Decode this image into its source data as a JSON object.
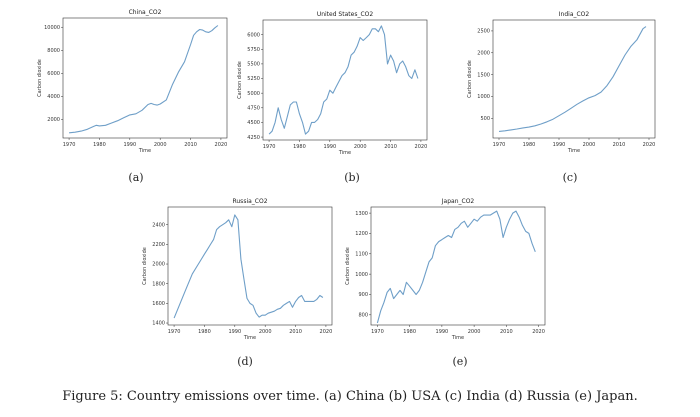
{
  "figure": {
    "caption": "Figure 5: Country emissions over time. (a) China (b) USA (c) India (d) Russia (e) Japan."
  },
  "chart_data": [
    {
      "type": "line",
      "sublabel": "(a)",
      "title": "China_CO2",
      "xlabel": "Time",
      "ylabel": "Carbon dioxide",
      "xlim": [
        1968,
        2022
      ],
      "ylim": [
        400,
        10800
      ],
      "xticks": [
        1970,
        1980,
        1990,
        2000,
        2010,
        2020
      ],
      "yticks": [
        2000,
        4000,
        6000,
        8000,
        10000
      ],
      "line_color": "#6f9fc8",
      "series": [
        {
          "x": [
            1970,
            1972,
            1974,
            1976,
            1978,
            1979,
            1980,
            1982,
            1984,
            1986,
            1988,
            1990,
            1992,
            1994,
            1996,
            1997,
            1998,
            1999,
            2000,
            2002,
            2004,
            2006,
            2008,
            2010,
            2011,
            2012,
            2013,
            2014,
            2015,
            2016,
            2017,
            2018,
            2019
          ],
          "y": [
            850,
            900,
            1000,
            1150,
            1400,
            1500,
            1450,
            1500,
            1700,
            1900,
            2150,
            2400,
            2500,
            2800,
            3300,
            3400,
            3300,
            3250,
            3350,
            3700,
            5000,
            6100,
            7000,
            8500,
            9300,
            9600,
            9800,
            9750,
            9600,
            9550,
            9700,
            9950,
            10150
          ]
        }
      ]
    },
    {
      "type": "line",
      "sublabel": "(b)",
      "title": "United States_CO2",
      "xlabel": "Time",
      "ylabel": "Carbon dioxide",
      "xlim": [
        1968,
        2022
      ],
      "ylim": [
        4200,
        6250
      ],
      "xticks": [
        1970,
        1980,
        1990,
        2000,
        2010,
        2020
      ],
      "yticks": [
        4250,
        4500,
        4750,
        5000,
        5250,
        5500,
        5750,
        6000
      ],
      "line_color": "#6f9fc8",
      "series": [
        {
          "x": [
            1970,
            1971,
            1972,
            1973,
            1974,
            1975,
            1976,
            1977,
            1978,
            1979,
            1980,
            1981,
            1982,
            1983,
            1984,
            1985,
            1986,
            1987,
            1988,
            1989,
            1990,
            1991,
            1992,
            1993,
            1994,
            1995,
            1996,
            1997,
            1998,
            1999,
            2000,
            2001,
            2002,
            2003,
            2004,
            2005,
            2006,
            2007,
            2008,
            2009,
            2010,
            2011,
            2012,
            2013,
            2014,
            2015,
            2016,
            2017,
            2018,
            2019
          ],
          "y": [
            4300,
            4350,
            4500,
            4750,
            4550,
            4400,
            4600,
            4800,
            4850,
            4850,
            4650,
            4500,
            4300,
            4350,
            4500,
            4500,
            4550,
            4650,
            4850,
            4900,
            5050,
            5000,
            5100,
            5200,
            5300,
            5350,
            5450,
            5650,
            5700,
            5800,
            5950,
            5900,
            5950,
            6000,
            6100,
            6100,
            6050,
            6150,
            6000,
            5500,
            5650,
            5550,
            5350,
            5500,
            5550,
            5450,
            5300,
            5250,
            5400,
            5250
          ]
        }
      ]
    },
    {
      "type": "line",
      "sublabel": "(c)",
      "title": "India_CO2",
      "xlabel": "Time",
      "ylabel": "Carbon dioxide",
      "xlim": [
        1968,
        2022
      ],
      "ylim": [
        50,
        2750
      ],
      "xticks": [
        1970,
        1980,
        1990,
        2000,
        2010,
        2020
      ],
      "yticks": [
        500,
        1000,
        1500,
        2000,
        2500
      ],
      "line_color": "#6f9fc8",
      "series": [
        {
          "x": [
            1970,
            1972,
            1974,
            1976,
            1978,
            1980,
            1982,
            1984,
            1986,
            1988,
            1990,
            1992,
            1994,
            1996,
            1998,
            2000,
            2002,
            2004,
            2006,
            2008,
            2010,
            2012,
            2014,
            2016,
            2018,
            2019
          ],
          "y": [
            200,
            215,
            235,
            255,
            280,
            300,
            330,
            370,
            420,
            480,
            560,
            640,
            730,
            820,
            900,
            970,
            1020,
            1100,
            1250,
            1450,
            1700,
            1950,
            2150,
            2300,
            2550,
            2600
          ]
        }
      ]
    },
    {
      "type": "line",
      "sublabel": "(d)",
      "title": "Russia_CO2",
      "xlabel": "Time",
      "ylabel": "Carbon dioxide",
      "xlim": [
        1968,
        2022
      ],
      "ylim": [
        1380,
        2580
      ],
      "xticks": [
        1970,
        1980,
        1990,
        2000,
        2010,
        2020
      ],
      "yticks": [
        1400,
        1600,
        1800,
        2000,
        2200,
        2400
      ],
      "line_color": "#6f9fc8",
      "series": [
        {
          "x": [
            1970,
            1972,
            1974,
            1976,
            1978,
            1979,
            1980,
            1981,
            1982,
            1983,
            1984,
            1985,
            1986,
            1987,
            1988,
            1989,
            1990,
            1991,
            1992,
            1993,
            1994,
            1995,
            1996,
            1997,
            1998,
            1999,
            2000,
            2001,
            2002,
            2003,
            2004,
            2005,
            2006,
            2007,
            2008,
            2009,
            2010,
            2011,
            2012,
            2013,
            2014,
            2015,
            2016,
            2017,
            2018,
            2019
          ],
          "y": [
            1450,
            1600,
            1750,
            1900,
            2000,
            2050,
            2100,
            2150,
            2200,
            2250,
            2350,
            2380,
            2400,
            2420,
            2450,
            2380,
            2500,
            2450,
            2050,
            1850,
            1650,
            1600,
            1580,
            1500,
            1460,
            1480,
            1480,
            1500,
            1510,
            1520,
            1540,
            1550,
            1580,
            1600,
            1620,
            1560,
            1620,
            1660,
            1680,
            1620,
            1620,
            1620,
            1620,
            1640,
            1680,
            1660
          ]
        }
      ]
    },
    {
      "type": "line",
      "sublabel": "(e)",
      "title": "Japan_CO2",
      "xlabel": "Time",
      "ylabel": "Carbon dioxide",
      "xlim": [
        1968,
        2022
      ],
      "ylim": [
        750,
        1330
      ],
      "xticks": [
        1970,
        1980,
        1990,
        2000,
        2010,
        2020
      ],
      "yticks": [
        800,
        900,
        1000,
        1100,
        1200,
        1300
      ],
      "line_color": "#6f9fc8",
      "series": [
        {
          "x": [
            1970,
            1971,
            1972,
            1973,
            1974,
            1975,
            1976,
            1977,
            1978,
            1979,
            1980,
            1981,
            1982,
            1983,
            1984,
            1985,
            1986,
            1987,
            1988,
            1989,
            1990,
            1991,
            1992,
            1993,
            1994,
            1995,
            1996,
            1997,
            1998,
            1999,
            2000,
            2001,
            2002,
            2003,
            2004,
            2005,
            2006,
            2007,
            2008,
            2009,
            2010,
            2011,
            2012,
            2013,
            2014,
            2015,
            2016,
            2017,
            2018,
            2019
          ],
          "y": [
            760,
            820,
            860,
            910,
            930,
            880,
            900,
            920,
            900,
            960,
            940,
            920,
            900,
            920,
            960,
            1010,
            1060,
            1080,
            1140,
            1160,
            1170,
            1180,
            1190,
            1180,
            1220,
            1230,
            1250,
            1260,
            1230,
            1250,
            1270,
            1260,
            1280,
            1290,
            1290,
            1290,
            1300,
            1310,
            1270,
            1180,
            1230,
            1270,
            1300,
            1310,
            1280,
            1240,
            1210,
            1200,
            1150,
            1110
          ]
        }
      ]
    }
  ]
}
